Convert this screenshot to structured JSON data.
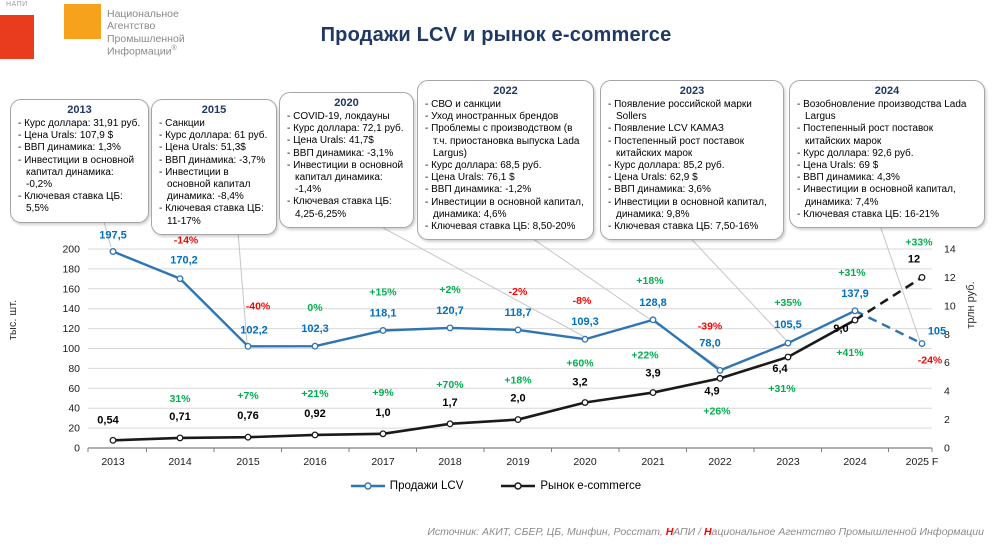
{
  "logo": {
    "mini": "НАПИ",
    "lines": [
      "Национальное",
      "Агентство",
      "Промышленной",
      "Информации"
    ],
    "registered": "®",
    "red_color": "#E93C1F",
    "orange_color": "#F6A21D"
  },
  "title": "Продажи LCV и рынок e-commerce",
  "annotations": [
    {
      "year": "2013",
      "items": [
        "Курс доллара: 31,91 руб.",
        "Цена Urals: 107,9 $",
        "ВВП динамика: 1,3%",
        "Инвестиции в основной капитал динамика: -0,2%",
        "Ключевая ставка ЦБ: 5,5%"
      ]
    },
    {
      "year": "2015",
      "items": [
        "Санкции",
        "Курс доллара: 61 руб.",
        "Цена Urals: 51,3$",
        "ВВП динамика: -3,7%",
        "Инвестиции в основной капитал динамика: -8,4%",
        "Ключевая ставка ЦБ: 11-17%"
      ]
    },
    {
      "year": "2020",
      "items": [
        "COVID-19, локдауны",
        "Курс доллара: 72,1 руб.",
        "Цена Urals: 41,7$",
        "ВВП динамика: -3,1%",
        "Инвестиции в основной капитал динамика: -1,4%",
        "Ключевая ставка ЦБ: 4,25-6,25%"
      ]
    },
    {
      "year": "2022",
      "items": [
        "СВО и санкции",
        "Уход иностранных брендов",
        "Проблемы с производством (в т.ч. приостановка выпуска Lada Largus)",
        "Курс доллара: 68,5 руб.",
        "Цена Urals: 76,1 $",
        "ВВП динамика: -1,2%",
        "Инвестиции в основной капитал, динамика: 4,6%",
        "Ключевая ставка ЦБ: 8,50-20%"
      ]
    },
    {
      "year": "2023",
      "items": [
        "Появление российской марки Sollers",
        "Появление LCV КАМАЗ",
        "Постепенный рост поставок китайских марок",
        "Курс доллара: 85,2 руб.",
        "Цена Urals: 62,9 $",
        "ВВП динамика: 3,6%",
        "Инвестиции в основной капитал, динамика: 9,8%",
        "Ключевая ставка ЦБ: 7,50-16%"
      ]
    },
    {
      "year": "2024",
      "items": [
        "Возобновление производства Lada Largus",
        "Постепенный рост поставок китайских марок",
        "Курс доллара: 92,6 руб.",
        "Цена Urals: 69 $",
        "ВВП динамика: 4,3%",
        "Инвестиции в основной капитал, динамика: 7,4%",
        "Ключевая ставка ЦБ: 16-21%"
      ]
    }
  ],
  "chart_data": {
    "type": "line",
    "categories": [
      "2013",
      "2014",
      "2015",
      "2016",
      "2017",
      "2018",
      "2019",
      "2020",
      "2021",
      "2022",
      "2023",
      "2024",
      "2025 F"
    ],
    "left_axis": {
      "label": "тыс. шт.",
      "min": 0,
      "max": 200,
      "step": 20
    },
    "right_axis": {
      "label": "трлн руб.",
      "min": 0,
      "max": 14,
      "step": 2
    },
    "series": [
      {
        "name": "Продажи LCV",
        "axis": "left",
        "color": "#2E75B6",
        "label_color": "#0070C0",
        "values": [
          197.5,
          170.2,
          102.2,
          102.3,
          118.1,
          120.7,
          118.7,
          109.3,
          128.8,
          78.0,
          105.5,
          137.9,
          105
        ],
        "labels": [
          "197,5",
          "170,2",
          "102,2",
          "102,3",
          "118,1",
          "120,7",
          "118,7",
          "109,3",
          "128,8",
          "78,0",
          "105,5",
          "137,9",
          "105"
        ],
        "pct": [
          "",
          "-14%",
          "-40%",
          "0%",
          "+15%",
          "+2%",
          "-2%",
          "-8%",
          "+18%",
          "-39%",
          "+35%",
          "+31%",
          "-24%"
        ],
        "forecast_from_index": 11
      },
      {
        "name": "Рынок e-commerce",
        "axis": "right",
        "color": "#1A1A1A",
        "label_color": "#000000",
        "values": [
          0.54,
          0.71,
          0.76,
          0.92,
          1.0,
          1.7,
          2.0,
          3.2,
          3.9,
          4.9,
          6.4,
          9.0,
          12
        ],
        "labels": [
          "0,54",
          "0,71",
          "0,76",
          "0,92",
          "1,0",
          "1,7",
          "2,0",
          "3,2",
          "3,9",
          "4,9",
          "6,4",
          "9,0",
          "12"
        ],
        "pct": [
          "",
          "31%",
          "+7%",
          "+21%",
          "+9%",
          "+70%",
          "+18%",
          "+60%",
          "+22%",
          "+26%",
          "+31%",
          "+41%",
          "+33%"
        ],
        "forecast_from_index": 11
      }
    ],
    "positive_color": "#00B050",
    "negative_color": "#FF0000",
    "grid": true,
    "legend_position": "bottom"
  },
  "legend": {
    "items": [
      {
        "label": "Продажи LCV",
        "color": "#2E75B6"
      },
      {
        "label": "Рынок e-commerce",
        "color": "#1A1A1A"
      }
    ]
  },
  "footer": {
    "prefix": "Источник: АКИТ, СБЕР, ЦБ, Минфин, Росстат, ",
    "h1": "Н",
    "mid": "АПИ / ",
    "h2": "Н",
    "suffix": "ациональное Агентство Промышленной Информации",
    "highlight_color": "#FF0000"
  }
}
